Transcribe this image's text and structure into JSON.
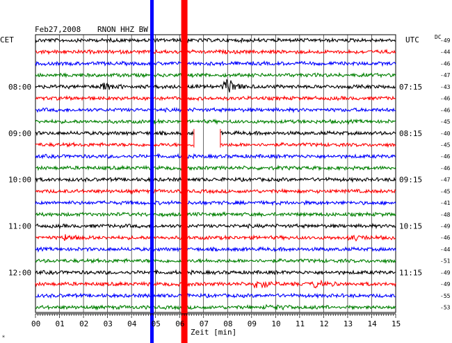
{
  "header": {
    "date": "Feb27,2008",
    "station": "RNON HHZ BW",
    "left_zone": "CET",
    "right_zone": "UTC",
    "dc_label": "DC"
  },
  "chart_data": {
    "type": "line",
    "title": "Feb27,2008  RNON HHZ BW",
    "xlabel": "Zeit [min]",
    "xlim": [
      0,
      15
    ],
    "x_ticks": [
      "00",
      "01",
      "02",
      "03",
      "04",
      "05",
      "06",
      "07",
      "08",
      "09",
      "10",
      "11",
      "12",
      "13",
      "14",
      "15"
    ],
    "trace_count": 24,
    "trace_colors": [
      "#000000",
      "#ff0000",
      "#0000ff",
      "#008000"
    ],
    "left_time_labels": [
      {
        "trace": 4,
        "label": "08:00"
      },
      {
        "trace": 8,
        "label": "09:00"
      },
      {
        "trace": 12,
        "label": "10:00"
      },
      {
        "trace": 16,
        "label": "11:00"
      },
      {
        "trace": 20,
        "label": "12:00"
      }
    ],
    "right_time_labels": [
      {
        "trace": 4,
        "label": "07:15"
      },
      {
        "trace": 8,
        "label": "08:15"
      },
      {
        "trace": 12,
        "label": "09:15"
      },
      {
        "trace": 16,
        "label": "10:15"
      },
      {
        "trace": 20,
        "label": "11:15"
      }
    ],
    "dc_values": [
      "-49",
      "-44",
      "-46",
      "-47",
      "-43",
      "-46",
      "-46",
      "-45",
      "-40",
      "-45",
      "-46",
      "-46",
      "-47",
      "-45",
      "-41",
      "-48",
      "-49",
      "-46",
      "-44",
      "-51",
      "-49",
      "-49",
      "-55",
      "-53"
    ],
    "events": [
      {
        "trace": 4,
        "minute": 2.8,
        "amplitude": 0.35
      },
      {
        "trace": 4,
        "minute": 7.9,
        "amplitude": 0.9
      },
      {
        "trace": 17,
        "minute": 1.2,
        "amplitude": 0.3
      },
      {
        "trace": 17,
        "minute": 13.1,
        "amplitude": 0.3
      },
      {
        "trace": 21,
        "minute": 9.2,
        "amplitude": 0.55
      },
      {
        "trace": 21,
        "minute": 11.6,
        "amplitude": 0.3
      },
      {
        "trace": 23,
        "minute": 9.7,
        "amplitude": 0.3
      }
    ],
    "vertical_markers": [
      {
        "minute": 4.85,
        "color": "#0000ff"
      },
      {
        "minute": 6.2,
        "color": "#ff0000"
      }
    ],
    "gap": {
      "trace_start": 8,
      "trace_end": 9,
      "minute_start": 6.6,
      "minute_end": 7.7
    },
    "grid": true
  }
}
